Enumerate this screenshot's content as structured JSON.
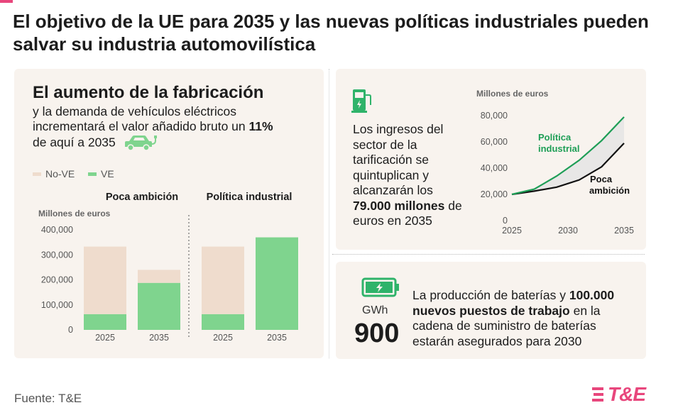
{
  "title": "El objetivo de la UE para 2035 y las nuevas políticas industriales pueden salvar su industria automovilística",
  "left_panel": {
    "heading": "El aumento de la fabricación",
    "sub_text_1": "y la demanda de vehículos eléctricos incrementará el valor añadido bruto un",
    "sub_pct": "11%",
    "sub_text_2": " de aquí a 2035",
    "icon": "electric-car-icon"
  },
  "top_right": {
    "text_1": "Los ingresos del sector de la tarificación se quintuplican y alcanzarán los",
    "text_strong": "79.000 millones",
    "text_2": " de euros en 2035",
    "icon": "charging-station-icon"
  },
  "bottom_right": {
    "unit": "GWh",
    "value": "900",
    "text_1": "La producción de baterías y",
    "text_strong": "100.000 nuevos puestos de trabajo",
    "text_2": " en la cadena de suministro de baterías estarán asegurados para 2030",
    "icon": "battery-icon"
  },
  "source": "Fuente: T&E",
  "logo": "T&E",
  "colors": {
    "no_ve": "#efdccd",
    "ve": "#7fd48e",
    "industrial_line": "#1e9e56",
    "low_line": "#111111",
    "accent": "#e8467c",
    "panel": "#f8f3ee"
  },
  "chart_data": [
    {
      "type": "bar",
      "stacked": true,
      "unit_label": "Millones de euros",
      "legend": [
        "No-VE",
        "VE"
      ],
      "ylim": [
        0,
        400000
      ],
      "yticks": [
        "400,000",
        "300,000",
        "200,000",
        "100,000",
        "0"
      ],
      "ytick_values": [
        400000,
        300000,
        200000,
        100000,
        0
      ],
      "groups": [
        {
          "name": "Poca ambición",
          "categories": [
            "2025",
            "2035"
          ],
          "series": [
            {
              "name": "VE",
              "values": [
                63000,
                188000
              ]
            },
            {
              "name": "No-VE",
              "values": [
                270000,
                52000
              ]
            }
          ]
        },
        {
          "name": "Política industrial",
          "categories": [
            "2025",
            "2035"
          ],
          "series": [
            {
              "name": "VE",
              "values": [
                63000,
                370000
              ]
            },
            {
              "name": "No-VE",
              "values": [
                270000,
                0
              ]
            }
          ]
        }
      ]
    },
    {
      "type": "line",
      "unit_label": "Millones de euros",
      "x": [
        2025,
        2027,
        2029,
        2031,
        2033,
        2035
      ],
      "xticks": [
        "2025",
        "2030",
        "2035"
      ],
      "xtick_values": [
        2025,
        2030,
        2035
      ],
      "ylim": [
        0,
        80000
      ],
      "yticks": [
        "80,000",
        "60,000",
        "40,000",
        "20,000",
        "0"
      ],
      "ytick_values": [
        80000,
        60000,
        40000,
        20000,
        0
      ],
      "series": [
        {
          "name": "Política industrial",
          "values": [
            20000,
            24000,
            34000,
            46000,
            61000,
            79000
          ]
        },
        {
          "name": "Poca ambición",
          "values": [
            20000,
            22500,
            25500,
            31000,
            41000,
            59000
          ]
        }
      ]
    }
  ]
}
